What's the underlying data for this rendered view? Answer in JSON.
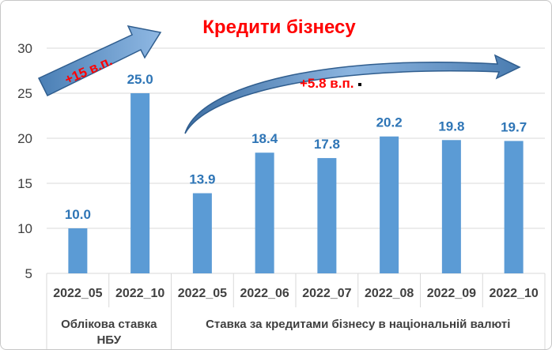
{
  "chart_data": {
    "type": "bar",
    "title": "Кредити бізнесу",
    "categories": [
      "2022_05",
      "2022_10",
      "2022_05",
      "2022_06",
      "2022_07",
      "2022_08",
      "2022_09",
      "2022_10"
    ],
    "values": [
      10.0,
      25.0,
      13.9,
      18.4,
      17.8,
      20.2,
      19.8,
      19.7
    ],
    "value_labels": [
      "10.0",
      "25.0",
      "13.9",
      "18.4",
      "17.8",
      "20.2",
      "19.8",
      "19.7"
    ],
    "groups": [
      {
        "label": "Облікова ставка НБУ",
        "lines": [
          "Облікова ставка",
          "НБУ"
        ],
        "start": 0,
        "end": 1
      },
      {
        "label": "Ставка за кредитами бізнесу в національній валюті",
        "start": 2,
        "end": 7
      }
    ],
    "yticks": [
      "5",
      "10",
      "15",
      "20",
      "25",
      "30"
    ],
    "ylim": [
      5,
      30
    ],
    "grid": true,
    "bar_color": "#5b9bd5",
    "label_color": "#2e75b6",
    "annotations": [
      {
        "text": "+15 в.п.",
        "color": "#ff0000"
      },
      {
        "text": "+5.8 в.п.",
        "color": "#ff0000"
      }
    ]
  }
}
